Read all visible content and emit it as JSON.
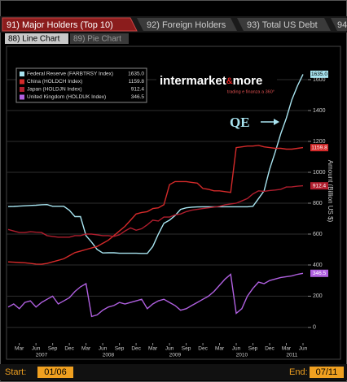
{
  "tabs": [
    "91) Major Holders (Top 10)",
    "92) Foreign Holders",
    "93) Total US Debt",
    "94"
  ],
  "subtabs": [
    "88) Line Chart",
    "89) Pie Chart"
  ],
  "watermark": {
    "brand": "intermarket",
    "amp": "&",
    "more": "more",
    "tagline": "trading e finanza a 360°"
  },
  "footer": {
    "start_label": "Start:",
    "start": "01/06",
    "end_label": "End:",
    "end": "07/11"
  },
  "chart_data": [
    {
      "type": "line",
      "y_axis_label": "Amount (Billion US $)",
      "annotation": "QE",
      "legend": "top-left",
      "grid": true,
      "ylim": [
        400,
        1700
      ],
      "yticks": [
        400,
        600,
        800,
        1000,
        1200,
        1400,
        1600
      ],
      "x": [
        "2007-01",
        "2007-02",
        "2007-03",
        "2007-04",
        "2007-05",
        "2007-06",
        "2007-07",
        "2007-08",
        "2007-09",
        "2007-10",
        "2007-11",
        "2007-12",
        "2008-01",
        "2008-02",
        "2008-03",
        "2008-04",
        "2008-05",
        "2008-06",
        "2008-07",
        "2008-08",
        "2008-09",
        "2008-10",
        "2008-11",
        "2008-12",
        "2009-01",
        "2009-02",
        "2009-03",
        "2009-04",
        "2009-05",
        "2009-06",
        "2009-07",
        "2009-08",
        "2009-09",
        "2009-10",
        "2009-11",
        "2009-12",
        "2010-01",
        "2010-02",
        "2010-03",
        "2010-04",
        "2010-05",
        "2010-06",
        "2010-07",
        "2010-08",
        "2010-09",
        "2010-10",
        "2010-11",
        "2010-12",
        "2011-01",
        "2011-02",
        "2011-03",
        "2011-04",
        "2011-05",
        "2011-06"
      ],
      "series": [
        {
          "name": "Federal Reserve (FARBTRSY Index)",
          "color": "#a8e4f0",
          "values": [
            778,
            779,
            781,
            783,
            785,
            787,
            790,
            791,
            780,
            780,
            780,
            754,
            713,
            713,
            590,
            548,
            500,
            478,
            479,
            479,
            476,
            476,
            476,
            476,
            475,
            475,
            520,
            600,
            670,
            690,
            720,
            760,
            770,
            774,
            776,
            777,
            777,
            777,
            777,
            777,
            777,
            777,
            777,
            777,
            780,
            830,
            880,
            1020,
            1130,
            1250,
            1350,
            1470,
            1560,
            1635
          ],
          "value_labels": [
            null,
            null,
            null,
            null,
            null,
            null,
            null,
            null,
            null,
            null,
            null,
            null,
            null,
            null,
            null,
            null,
            null,
            null,
            null,
            null,
            null,
            null,
            null,
            null,
            null,
            null,
            null,
            null,
            null,
            null,
            null,
            null,
            null,
            null,
            null,
            null,
            null,
            null,
            null,
            null,
            null,
            null,
            null,
            null,
            null,
            null,
            null,
            null,
            null,
            null,
            null,
            null,
            null,
            "1635.0"
          ]
        },
        {
          "name": "China (HOLDCH Index)",
          "color": "#d42a2a",
          "values": [
            420,
            418,
            416,
            414,
            410,
            406,
            405,
            410,
            420,
            430,
            440,
            460,
            480,
            490,
            500,
            510,
            520,
            540,
            560,
            590,
            620,
            650,
            690,
            730,
            740,
            745,
            765,
            770,
            790,
            920,
            940,
            940,
            940,
            935,
            930,
            895,
            890,
            880,
            880,
            875,
            870,
            1160,
            1165,
            1170,
            1170,
            1175,
            1165,
            1160,
            1155,
            1155,
            1150,
            1150,
            1155,
            1159.8
          ]
        },
        {
          "name": "Japan (HOLDJN Index)",
          "color": "#b01e2e",
          "values": [
            630,
            620,
            610,
            610,
            615,
            612,
            610,
            590,
            585,
            580,
            580,
            580,
            590,
            590,
            600,
            600,
            595,
            590,
            590,
            585,
            595,
            620,
            640,
            625,
            635,
            660,
            690,
            685,
            710,
            710,
            725,
            730,
            745,
            755,
            760,
            765,
            770,
            775,
            780,
            790,
            795,
            800,
            815,
            830,
            860,
            880,
            877,
            882,
            885,
            890,
            905,
            906,
            910,
            912.4
          ]
        }
      ]
    },
    {
      "type": "line",
      "grid": true,
      "ylim": [
        -100,
        400
      ],
      "yticks": [
        0,
        200
      ],
      "x": [
        "2007-01",
        "2007-02",
        "2007-03",
        "2007-04",
        "2007-05",
        "2007-06",
        "2007-07",
        "2007-08",
        "2007-09",
        "2007-10",
        "2007-11",
        "2007-12",
        "2008-01",
        "2008-02",
        "2008-03",
        "2008-04",
        "2008-05",
        "2008-06",
        "2008-07",
        "2008-08",
        "2008-09",
        "2008-10",
        "2008-11",
        "2008-12",
        "2009-01",
        "2009-02",
        "2009-03",
        "2009-04",
        "2009-05",
        "2009-06",
        "2009-07",
        "2009-08",
        "2009-09",
        "2009-10",
        "2009-11",
        "2009-12",
        "2010-01",
        "2010-02",
        "2010-03",
        "2010-04",
        "2010-05",
        "2010-06",
        "2010-07",
        "2010-08",
        "2010-09",
        "2010-10",
        "2010-11",
        "2010-12",
        "2011-01",
        "2011-02",
        "2011-03",
        "2011-04",
        "2011-05",
        "2011-06"
      ],
      "xticks": [
        {
          "value": "2007-03",
          "label": "Mar"
        },
        {
          "value": "2007-06",
          "label": "Jun"
        },
        {
          "value": "2007-09",
          "label": "Sep"
        },
        {
          "value": "2007-12",
          "label": "Dec"
        },
        {
          "value": "2008-03",
          "label": "Mar"
        },
        {
          "value": "2008-06",
          "label": "Jun"
        },
        {
          "value": "2008-09",
          "label": "Sep"
        },
        {
          "value": "2008-12",
          "label": "Dec"
        },
        {
          "value": "2009-03",
          "label": "Mar"
        },
        {
          "value": "2009-06",
          "label": "Jun"
        },
        {
          "value": "2009-09",
          "label": "Sep"
        },
        {
          "value": "2009-12",
          "label": "Dec"
        },
        {
          "value": "2010-03",
          "label": "Mar"
        },
        {
          "value": "2010-06",
          "label": "Jun"
        },
        {
          "value": "2010-09",
          "label": "Sep"
        },
        {
          "value": "2010-12",
          "label": "Dec"
        },
        {
          "value": "2011-03",
          "label": "Mar"
        },
        {
          "value": "2011-06",
          "label": "Jun"
        }
      ],
      "year_labels": [
        {
          "value": "2007-07",
          "label": "2007"
        },
        {
          "value": "2008-07",
          "label": "2008"
        },
        {
          "value": "2009-07",
          "label": "2009"
        },
        {
          "value": "2010-07",
          "label": "2010"
        },
        {
          "value": "2011-04",
          "label": "2011"
        }
      ],
      "series": [
        {
          "name": "United Kingdom (HOLDUK Index)",
          "color": "#b060e0",
          "values": [
            130,
            150,
            120,
            160,
            170,
            130,
            160,
            180,
            200,
            150,
            170,
            190,
            230,
            260,
            280,
            70,
            80,
            110,
            130,
            140,
            160,
            150,
            160,
            170,
            180,
            120,
            150,
            170,
            180,
            160,
            140,
            110,
            120,
            140,
            160,
            180,
            200,
            230,
            270,
            310,
            340,
            90,
            120,
            200,
            250,
            290,
            280,
            300,
            310,
            320,
            325,
            330,
            340,
            346.5
          ]
        }
      ]
    }
  ]
}
